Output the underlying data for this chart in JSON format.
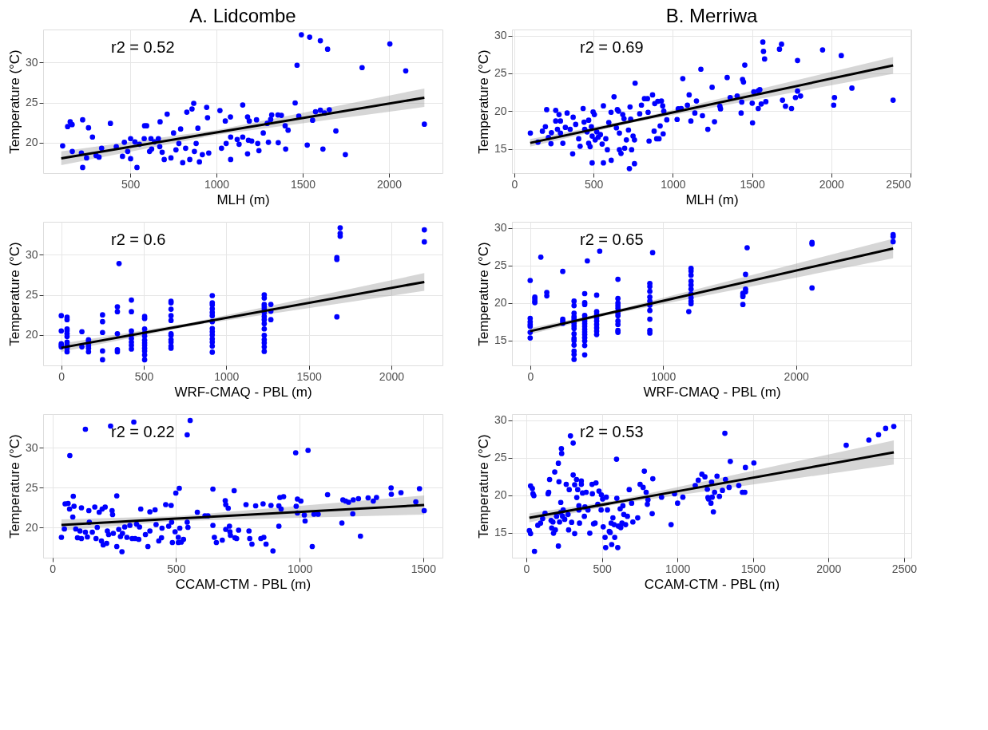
{
  "chart_data": [
    {
      "type": "scatter",
      "title": "A. Lidcombe",
      "xlabel": "MLH (m)",
      "ylabel": "Temperature (°C)",
      "annotations": [
        "r2 = 0.52"
      ],
      "xlim": [
        -5,
        2310
      ],
      "ylim": [
        16.2,
        34.1
      ],
      "xticks": [
        500,
        1000,
        1500,
        2000
      ],
      "yticks": [
        20,
        25,
        30
      ],
      "grid": true,
      "series": [
        {
          "marker": "circle",
          "color": "#0000ff",
          "x": [
            108,
            137,
            152,
            163,
            164,
            224,
            224,
            217,
            247,
            258,
            281,
            302,
            319,
            334,
            385,
            419,
            455,
            466,
            485,
            502,
            502,
            527,
            539,
            553,
            581,
            583,
            595,
            612,
            620,
            624,
            641,
            663,
            671,
            673,
            685,
            697,
            714,
            736,
            751,
            765,
            782,
            792,
            804,
            821,
            828,
            845,
            858,
            868,
            872,
            882,
            892,
            901,
            918,
            943,
            948,
            955,
            1020,
            1029,
            1051,
            1056,
            1081,
            1082,
            1082,
            1120,
            1131,
            1152,
            1152,
            1180,
            1180,
            1185,
            1190,
            1204,
            1232,
            1239,
            1246,
            1271,
            1294,
            1301,
            1314,
            1320,
            1356,
            1358,
            1376,
            1398,
            1401,
            1415,
            1456,
            1467,
            1477,
            1492,
            1526,
            1540,
            1557,
            1574,
            1602,
            1602,
            1617,
            1626,
            1644,
            1654,
            1692,
            1747,
            1844,
            2005,
            2097,
            2205
          ],
          "values": [
            19.6,
            22.0,
            22.6,
            22.25,
            18.9,
            22.85,
            16.9,
            18.7,
            18.1,
            21.85,
            20.7,
            18.4,
            18.2,
            19.3,
            22.4,
            19.5,
            18.3,
            20.05,
            18.9,
            20.5,
            18.0,
            20.1,
            16.9,
            19.8,
            20.5,
            22.1,
            22.1,
            18.9,
            20.5,
            19.2,
            20.1,
            20.5,
            19.5,
            22.6,
            18.8,
            17.9,
            23.55,
            18.1,
            21.2,
            19.1,
            19.9,
            21.7,
            17.5,
            19.3,
            23.8,
            17.9,
            24.2,
            24.9,
            18.9,
            19.9,
            21.8,
            17.6,
            18.5,
            24.4,
            23.1,
            18.7,
            24.0,
            19.3,
            22.7,
            19.9,
            23.2,
            17.9,
            20.7,
            20.4,
            19.8,
            24.7,
            20.7,
            23.2,
            18.6,
            20.3,
            22.7,
            20.2,
            22.85,
            19.9,
            19.0,
            21.2,
            22.4,
            20.05,
            22.9,
            23.45,
            23.45,
            20.0,
            23.4,
            22.1,
            19.2,
            21.55,
            24.95,
            29.65,
            23.3,
            33.45,
            19.7,
            33.15,
            22.8,
            23.85,
            24.05,
            32.7,
            19.2,
            23.7,
            31.65,
            24.1,
            21.45,
            18.5,
            29.35,
            32.3,
            28.95,
            22.3
          ]
        },
        {
          "type": "line",
          "color": "#000000",
          "x": [
            100,
            1000,
            2205
          ],
          "values": [
            18.05,
            21.28,
            25.6
          ],
          "lower": [
            17.2,
            20.98,
            24.45
          ],
          "upper": [
            18.9,
            21.58,
            26.75
          ]
        }
      ]
    },
    {
      "type": "scatter",
      "title": "B. Merriwa",
      "xlabel": "MLH (m)",
      "ylabel": "Temperature (°C)",
      "annotations": [
        "r2 = 0.69"
      ],
      "xlim": [
        -15,
        2505
      ],
      "ylim": [
        11.8,
        30.8
      ],
      "xticks": [
        0,
        500,
        1000,
        1500,
        2000,
        2500
      ],
      "yticks": [
        15,
        20,
        25,
        30
      ],
      "grid": true,
      "series": [
        {
          "marker": "circle",
          "color": "#0000ff",
          "x": [
            101,
            149,
            177,
            204,
            196,
            215,
            231,
            234,
            261,
            261,
            272,
            282,
            291,
            291,
            306,
            322,
            333,
            352,
            368,
            371,
            387,
            406,
            415,
            434,
            440,
            444,
            459,
            469,
            469,
            478,
            486,
            491,
            497,
            491,
            505,
            510,
            520,
            529,
            543,
            554,
            562,
            562,
            577,
            587,
            596,
            610,
            611,
            629,
            644,
            650,
            657,
            663,
            663,
            673,
            684,
            692,
            696,
            707,
            720,
            730,
            734,
            740,
            749,
            758,
            758,
            726,
            762,
            791,
            802,
            821,
            840,
            844,
            850,
            872,
            882,
            886,
            898,
            905,
            913,
            920,
            928,
            936,
            939,
            943,
            962,
            1027,
            1034,
            1053,
            1063,
            1092,
            1103,
            1114,
            1139,
            1149,
            1177,
            1187,
            1221,
            1248,
            1263,
            1297,
            1301,
            1343,
            1362,
            1406,
            1431,
            1435,
            1440,
            1446,
            1454,
            1501,
            1503,
            1511,
            1539,
            1539,
            1549,
            1558,
            1568,
            1572,
            1579,
            1587,
            1673,
            1686,
            1692,
            1711,
            1749,
            1774,
            1787,
            1787,
            1806,
            1945,
            2015,
            2020,
            2063,
            2130,
            2390
          ],
          "values": [
            17.1,
            15.9,
            17.35,
            20.2,
            17.95,
            16.5,
            15.7,
            17.15,
            18.7,
            20.1,
            17.6,
            19.55,
            18.7,
            17.1,
            15.75,
            17.85,
            19.75,
            17.6,
            14.35,
            19.2,
            18.25,
            16.35,
            15.35,
            20.35,
            18.55,
            17.6,
            17.25,
            18.8,
            15.75,
            15.3,
            17.95,
            16.7,
            19.9,
            13.15,
            19.55,
            16.2,
            17.25,
            16.55,
            16.9,
            15.65,
            20.7,
            13.15,
            16.35,
            14.9,
            18.5,
            19.85,
            13.5,
            21.9,
            17.8,
            20.2,
            20.0,
            14.9,
            17.1,
            14.4,
            19.55,
            19.0,
            15.1,
            16.2,
            17.5,
            20.55,
            18.95,
            14.9,
            16.7,
            16.2,
            13.05,
            12.4,
            23.7,
            19.65,
            20.8,
            21.65,
            21.65,
            19.85,
            16.05,
            22.15,
            17.35,
            21.0,
            16.35,
            21.3,
            16.35,
            18.05,
            21.35,
            20.7,
            17.0,
            20.0,
            18.85,
            18.9,
            20.3,
            20.35,
            24.3,
            20.8,
            22.15,
            18.7,
            19.75,
            21.35,
            25.55,
            19.4,
            17.6,
            23.15,
            18.6,
            20.65,
            20.3,
            24.45,
            21.8,
            22.0,
            19.75,
            21.2,
            24.2,
            23.85,
            26.1,
            21.05,
            18.45,
            22.55,
            22.7,
            20.35,
            22.85,
            20.95,
            29.15,
            27.9,
            26.9,
            21.25,
            28.2,
            28.85,
            21.45,
            20.65,
            20.35,
            21.8,
            26.7,
            22.65,
            22.0,
            28.1,
            20.8,
            21.8,
            27.35,
            23.05,
            21.45
          ]
        },
        {
          "type": "line",
          "color": "#000000",
          "x": [
            100,
            750,
            2390
          ],
          "values": [
            15.8,
            18.71,
            26.05
          ],
          "lower": [
            15.3,
            18.51,
            24.95
          ],
          "upper": [
            16.3,
            18.91,
            27.15
          ]
        }
      ]
    },
    {
      "type": "scatter",
      "xlabel": "WRF-CMAQ - PBL (m)",
      "ylabel": "Temperature (°C)",
      "annotations": [
        "r2 = 0.6"
      ],
      "xlim": [
        -110,
        2310
      ],
      "ylim": [
        16.2,
        34.1
      ],
      "xticks": [
        0,
        500,
        1000,
        1500,
        2000
      ],
      "yticks": [
        20,
        25,
        30
      ],
      "grid": true,
      "series": [
        {
          "marker": "circle",
          "color": "#0000ff",
          "x": [
            0,
            0,
            0,
            0,
            0,
            35,
            35,
            35,
            35,
            35,
            35,
            35,
            35,
            35,
            35,
            125,
            125,
            165,
            165,
            165,
            165,
            165,
            165,
            250,
            250,
            250,
            250,
            250,
            340,
            340,
            340,
            340,
            340,
            350,
            425,
            425,
            425,
            425,
            425,
            425,
            425,
            425,
            505,
            505,
            505,
            505,
            505,
            505,
            505,
            505,
            505,
            505,
            505,
            505,
            665,
            665,
            665,
            665,
            665,
            665,
            665,
            665,
            665,
            665,
            665,
            915,
            915,
            915,
            915,
            915,
            915,
            915,
            915,
            915,
            915,
            915,
            915,
            915,
            915,
            1230,
            1230,
            1230,
            1230,
            1230,
            1230,
            1230,
            1230,
            1230,
            1230,
            1230,
            1230,
            1230,
            1230,
            1230,
            1270,
            1270,
            1270,
            1670,
            1670,
            1670,
            1690,
            1690,
            1690,
            2200,
            2200
          ],
          "values": [
            22.4,
            20.5,
            18.9,
            18.7,
            18.5,
            22.2,
            21.9,
            20.75,
            20.5,
            20.15,
            19.8,
            19.1,
            18.7,
            18.35,
            17.9,
            20.4,
            18.5,
            19.4,
            19.2,
            18.9,
            18.6,
            18.35,
            17.9,
            22.5,
            21.65,
            20.3,
            18.0,
            16.9,
            23.5,
            22.9,
            20.15,
            18.15,
            17.9,
            28.9,
            24.35,
            22.9,
            20.5,
            20.0,
            19.55,
            19.1,
            18.7,
            18.25,
            22.3,
            22.05,
            20.75,
            20.25,
            19.85,
            19.35,
            19.0,
            18.7,
            18.35,
            18.0,
            17.5,
            16.9,
            24.2,
            24.0,
            23.2,
            22.4,
            21.8,
            20.15,
            19.95,
            19.4,
            19.1,
            18.6,
            18.35,
            24.9,
            24.0,
            23.75,
            23.25,
            22.8,
            22.4,
            21.65,
            20.8,
            20.4,
            20.0,
            19.5,
            19.1,
            18.6,
            17.85,
            25.0,
            24.6,
            23.8,
            23.55,
            23.25,
            22.8,
            22.3,
            21.9,
            21.4,
            20.75,
            19.95,
            19.4,
            19.0,
            18.5,
            17.95,
            23.8,
            22.95,
            21.9,
            22.25,
            29.65,
            29.4,
            33.35,
            32.65,
            32.3,
            33.1,
            31.6
          ]
        },
        {
          "type": "line",
          "color": "#000000",
          "x": [
            0,
            800,
            2200
          ],
          "values": [
            18.4,
            21.38,
            26.6
          ],
          "lower": [
            17.9,
            21.18,
            25.5
          ],
          "upper": [
            18.9,
            21.58,
            27.7
          ]
        }
      ]
    },
    {
      "type": "scatter",
      "xlabel": "WRF-CMAQ - PBL (m)",
      "ylabel": "Temperature (°C)",
      "annotations": [
        "r2 = 0.65"
      ],
      "xlim": [
        -137,
        2867
      ],
      "ylim": [
        11.7,
        30.8
      ],
      "xticks": [
        0,
        1000,
        2000
      ],
      "yticks": [
        15,
        20,
        25,
        30
      ],
      "grid": true,
      "series": [
        {
          "marker": "circle",
          "color": "#0000ff",
          "x": [
            0,
            0,
            0,
            0,
            0,
            0,
            0,
            35,
            35,
            35,
            35,
            80,
            125,
            125,
            245,
            245,
            245,
            245,
            330,
            330,
            330,
            330,
            330,
            330,
            330,
            330,
            330,
            330,
            330,
            330,
            330,
            330,
            330,
            330,
            410,
            410,
            410,
            410,
            410,
            410,
            410,
            410,
            410,
            410,
            410,
            410,
            410,
            410,
            410,
            430,
            500,
            500,
            500,
            500,
            500,
            500,
            500,
            500,
            500,
            523,
            660,
            660,
            660,
            660,
            660,
            660,
            660,
            660,
            660,
            660,
            660,
            900,
            900,
            900,
            900,
            900,
            900,
            900,
            900,
            900,
            900,
            921,
            1193,
            1210,
            1210,
            1210,
            1210,
            1210,
            1210,
            1210,
            1210,
            1210,
            1210,
            1600,
            1600,
            1600,
            1600,
            1620,
            1620,
            1620,
            1632,
            2120,
            2120,
            2120,
            2730,
            2730,
            2730
          ],
          "values": [
            23.0,
            17.95,
            17.5,
            17.15,
            16.9,
            16.1,
            15.35,
            20.8,
            20.55,
            20.25,
            20.05,
            26.1,
            21.4,
            20.95,
            24.2,
            17.85,
            17.6,
            17.3,
            20.25,
            19.65,
            18.65,
            18.2,
            17.95,
            17.65,
            17.3,
            16.95,
            16.6,
            15.9,
            15.3,
            15.0,
            14.4,
            13.6,
            13.15,
            12.5,
            21.25,
            20.05,
            19.8,
            18.35,
            17.95,
            17.6,
            17.25,
            16.9,
            16.5,
            16.15,
            15.8,
            15.4,
            14.95,
            14.35,
            13.1,
            25.6,
            21.05,
            18.85,
            18.5,
            18.0,
            17.6,
            17.15,
            16.7,
            16.25,
            15.8,
            26.9,
            23.15,
            20.6,
            20.0,
            19.65,
            19.3,
            18.65,
            18.3,
            17.6,
            17.15,
            16.35,
            16.1,
            22.6,
            22.2,
            21.55,
            20.8,
            20.25,
            19.7,
            19.0,
            17.85,
            16.35,
            16.0,
            26.7,
            18.85,
            24.6,
            24.25,
            23.7,
            22.9,
            22.4,
            21.85,
            21.2,
            20.7,
            20.25,
            19.9,
            21.3,
            21.05,
            20.85,
            19.8,
            23.8,
            21.85,
            21.5,
            27.35,
            28.05,
            27.85,
            22.0,
            29.1,
            28.85,
            28.15
          ]
        },
        {
          "type": "line",
          "color": "#000000",
          "x": [
            0,
            600,
            2730
          ],
          "values": [
            16.25,
            18.67,
            27.25
          ],
          "lower": [
            15.85,
            18.47,
            25.95
          ],
          "upper": [
            16.65,
            18.87,
            28.55
          ]
        }
      ]
    },
    {
      "type": "scatter",
      "xlabel": "CCAM-CTM - PBL (m)",
      "ylabel": "Temperature (°C)",
      "annotations": [
        "r2 = 0.22"
      ],
      "xlim": [
        -38,
        1578
      ],
      "ylim": [
        16.2,
        34.2
      ],
      "xticks": [
        0,
        500,
        1000,
        1500
      ],
      "yticks": [
        20,
        25,
        30
      ],
      "grid": true,
      "series": [
        {
          "marker": "circle",
          "color": "#0000ff",
          "x": [
            36,
            48,
            51,
            63,
            70,
            69,
            82,
            84,
            87,
            94,
            101,
            111,
            117,
            117,
            133,
            133,
            141,
            147,
            149,
            161,
            171,
            176,
            181,
            189,
            198,
            201,
            205,
            213,
            219,
            222,
            227,
            235,
            241,
            243,
            246,
            260,
            260,
            268,
            275,
            281,
            283,
            292,
            301,
            313,
            322,
            329,
            334,
            340,
            349,
            352,
            357,
            376,
            386,
            394,
            394,
            415,
            419,
            430,
            441,
            443,
            458,
            470,
            480,
            482,
            485,
            496,
            499,
            509,
            509,
            513,
            515,
            521,
            530,
            545,
            557,
            545,
            548,
            586,
            617,
            629,
            649,
            649,
            655,
            663,
            687,
            699,
            701,
            701,
            711,
            716,
            718,
            720,
            735,
            738,
            745,
            753,
            783,
            795,
            798,
            807,
            822,
            843,
            852,
            855,
            864,
            884,
            892,
            916,
            916,
            920,
            925,
            935,
            984,
            986,
            991,
            991,
            1005,
            1019,
            1022,
            1034,
            1051,
            1058,
            1075,
            1113,
            1171,
            1175,
            1186,
            1198,
            1215,
            1217,
            1238,
            1246,
            1277,
            1298,
            1311,
            1370,
            1371,
            1410,
            1470,
            1485,
            1504
          ],
          "values": [
            18.75,
            19.8,
            22.95,
            23.0,
            29.0,
            22.3,
            21.3,
            23.9,
            22.65,
            19.8,
            18.7,
            19.55,
            18.6,
            22.45,
            32.3,
            19.4,
            18.8,
            22.1,
            20.65,
            19.4,
            22.55,
            18.6,
            20.0,
            21.9,
            18.3,
            22.3,
            17.8,
            22.55,
            18.0,
            19.55,
            19.1,
            32.7,
            22.1,
            21.6,
            19.25,
            17.6,
            23.95,
            19.75,
            18.85,
            16.95,
            19.25,
            20.05,
            18.75,
            20.25,
            18.6,
            33.2,
            18.6,
            20.4,
            18.5,
            20.05,
            22.3,
            19.1,
            17.6,
            19.55,
            21.95,
            22.2,
            20.35,
            18.3,
            18.7,
            19.9,
            22.85,
            20.15,
            22.75,
            20.65,
            18.1,
            19.45,
            24.3,
            18.75,
            18.1,
            24.9,
            19.9,
            18.15,
            18.5,
            31.6,
            33.4,
            20.65,
            20.0,
            21.9,
            21.45,
            21.45,
            24.8,
            20.25,
            18.75,
            18.1,
            18.4,
            23.35,
            22.85,
            19.75,
            22.4,
            20.15,
            19.45,
            19.0,
            24.6,
            18.7,
            18.6,
            19.65,
            22.85,
            19.55,
            18.6,
            17.9,
            22.7,
            18.6,
            22.95,
            18.75,
            17.9,
            22.75,
            17.05,
            22.7,
            20.15,
            23.75,
            22.3,
            23.85,
            29.35,
            22.65,
            23.55,
            21.8,
            23.3,
            21.55,
            20.8,
            29.65,
            17.6,
            21.65,
            21.65,
            24.1,
            20.55,
            23.45,
            23.3,
            23.15,
            21.7,
            23.45,
            23.6,
            18.9,
            23.7,
            23.3,
            23.75,
            24.95,
            24.15,
            24.35,
            23.2,
            24.85,
            22.1
          ]
        },
        {
          "type": "line",
          "color": "#000000",
          "x": [
            36,
            500,
            1504
          ],
          "values": [
            20.3,
            21.09,
            22.8
          ],
          "lower": [
            19.6,
            20.79,
            21.6
          ],
          "upper": [
            21.0,
            21.39,
            24.0
          ]
        }
      ]
    },
    {
      "type": "scatter",
      "xlabel": "CCAM-CTM - PBL (m)",
      "ylabel": "Temperature (°C)",
      "annotations": [
        "r2 = 0.53"
      ],
      "xlim": [
        -95,
        2548
      ],
      "ylim": [
        11.7,
        30.8
      ],
      "xticks": [
        0,
        500,
        1000,
        1500,
        2000,
        2500
      ],
      "yticks": [
        15,
        20,
        25,
        30
      ],
      "grid": true,
      "series": [
        {
          "marker": "circle",
          "color": "#0000ff",
          "x": [
            20,
            28,
            28,
            40,
            44,
            50,
            54,
            76,
            94,
            108,
            124,
            144,
            148,
            154,
            164,
            168,
            176,
            180,
            188,
            192,
            200,
            212,
            212,
            216,
            220,
            228,
            228,
            232,
            234,
            240,
            244,
            254,
            264,
            276,
            280,
            284,
            292,
            300,
            310,
            310,
            320,
            320,
            332,
            334,
            340,
            348,
            348,
            352,
            364,
            364,
            372,
            384,
            388,
            396,
            408,
            420,
            435,
            437,
            445,
            455,
            461,
            473,
            481,
            495,
            497,
            505,
            509,
            521,
            525,
            529,
            537,
            549,
            555,
            561,
            565,
            573,
            581,
            585,
            597,
            599,
            605,
            609,
            621,
            625,
            633,
            639,
            645,
            657,
            669,
            681,
            697,
            705,
            737,
            753,
            773,
            781,
            793,
            801,
            805,
            833,
            837,
            895,
            958,
            981,
            1001,
            1036,
            1118,
            1138,
            1162,
            1182,
            1198,
            1202,
            1206,
            1222,
            1226,
            1230,
            1238,
            1246,
            1262,
            1278,
            1298,
            1314,
            1318,
            1342,
            1350,
            1406,
            1430,
            1446,
            1450,
            1506,
            2117,
            2267,
            2331,
            2378,
            2432
          ],
          "values": [
            15.3,
            21.25,
            14.9,
            20.9,
            20.2,
            19.95,
            12.55,
            16.0,
            16.3,
            16.9,
            17.6,
            20.2,
            20.4,
            22.1,
            16.65,
            15.65,
            16.45,
            14.95,
            23.1,
            15.4,
            17.2,
            24.25,
            13.25,
            21.8,
            16.45,
            17.7,
            19.05,
            26.2,
            25.55,
            17.2,
            18.05,
            16.8,
            21.45,
            17.45,
            15.4,
            20.75,
            27.9,
            16.4,
            26.95,
            22.7,
            21.4,
            14.9,
            22.1,
            19.7,
            20.75,
            18.05,
            18.6,
            16.3,
            21.9,
            21.45,
            20.3,
            17.2,
            18.45,
            20.4,
            18.05,
            14.95,
            21.45,
            20.2,
            16.2,
            16.3,
            21.65,
            18.8,
            20.55,
            18.05,
            20.05,
            19.5,
            15.8,
            14.4,
            13.05,
            19.75,
            18.05,
            15.2,
            15.05,
            16.3,
            13.45,
            17.0,
            16.1,
            14.4,
            24.8,
            19.6,
            13.05,
            15.9,
            18.2,
            15.7,
            16.3,
            18.6,
            17.45,
            16.1,
            17.2,
            20.75,
            18.95,
            16.45,
            17.0,
            21.45,
            21.05,
            23.2,
            20.4,
            18.8,
            19.4,
            17.55,
            22.2,
            19.75,
            16.1,
            20.2,
            18.95,
            19.75,
            21.3,
            22.0,
            22.8,
            22.45,
            20.8,
            19.7,
            19.5,
            18.95,
            21.75,
            19.75,
            17.8,
            20.4,
            22.55,
            19.85,
            20.65,
            28.25,
            22.1,
            21.05,
            24.5,
            21.3,
            20.4,
            20.4,
            23.7,
            24.3,
            26.65,
            27.35,
            28.05,
            28.9,
            29.15
          ]
        },
        {
          "type": "line",
          "color": "#000000",
          "x": [
            20,
            600,
            2432
          ],
          "values": [
            17.0,
            19.09,
            25.7
          ],
          "lower": [
            16.4,
            18.84,
            24.1
          ],
          "upper": [
            17.6,
            19.34,
            27.3
          ]
        }
      ]
    }
  ]
}
